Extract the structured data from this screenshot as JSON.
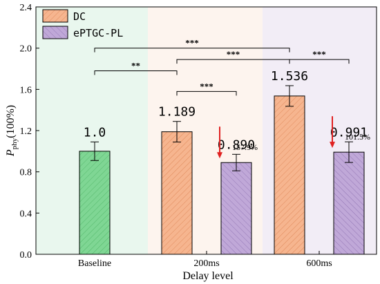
{
  "chart_data": {
    "type": "bar",
    "xlabel": "Delay level",
    "ylabel_main": "P",
    "ylabel_sub": "phy",
    "ylabel_unit": "(100%)",
    "ylim": [
      0,
      2.4
    ],
    "yticks": [
      0.0,
      0.4,
      0.8,
      1.2,
      1.6,
      2.0,
      2.4
    ],
    "ytick_labels": [
      "0.0",
      "0.4",
      "0.8",
      "1.2",
      "1.6",
      "2.0",
      "2.4"
    ],
    "categories": [
      "Baseline",
      "200ms",
      "600ms"
    ],
    "legend": {
      "placement": "top-left",
      "entries": [
        {
          "name": "DC",
          "color": "#f6b58f"
        },
        {
          "name": "ePTGC-PL",
          "color": "#c0a8d8"
        }
      ]
    },
    "bars": [
      {
        "category": "Baseline",
        "series": "baseline",
        "value": 1.0,
        "error": 0.09,
        "label": "1.0",
        "color": "#7fd694"
      },
      {
        "category": "200ms",
        "series": "DC",
        "value": 1.189,
        "error": 0.1,
        "label": "1.189",
        "color": "#f6b58f"
      },
      {
        "category": "200ms",
        "series": "ePTGC-PL",
        "value": 0.89,
        "error": 0.08,
        "label": "0.890",
        "color": "#c0a8d8"
      },
      {
        "category": "600ms",
        "series": "DC",
        "value": 1.536,
        "error": 0.1,
        "label": "1.536",
        "color": "#f6b58f"
      },
      {
        "category": "600ms",
        "series": "ePTGC-PL",
        "value": 0.991,
        "error": 0.1,
        "label": "0.991",
        "color": "#c0a8d8"
      }
    ],
    "improvement_annotations": [
      {
        "text": "157.9%",
        "category": "200ms",
        "color": "#e02020"
      },
      {
        "text": "101.5%",
        "category": "600ms",
        "color": "#e02020"
      }
    ],
    "significance_brackets": [
      {
        "from": "Baseline",
        "to": "600ms",
        "level": 2.0,
        "stars": "***"
      },
      {
        "from": "Baseline",
        "to": "200ms",
        "level": 1.78,
        "stars": "**"
      },
      {
        "from": "200ms",
        "to": "600ms",
        "level": 1.89,
        "stars": "***"
      },
      {
        "from": "200ms-DC",
        "to": "200ms-ePTGC-PL",
        "level": 1.58,
        "stars": "***"
      },
      {
        "from": "600ms",
        "to": "600ms-ePTGC-PL",
        "level": 1.89,
        "stars": "***"
      }
    ],
    "background_bands": [
      {
        "category": "Baseline",
        "color": "#e9f7ee"
      },
      {
        "category": "200ms",
        "color": "#fdf4ee"
      },
      {
        "category": "600ms",
        "color": "#f2edf6"
      }
    ]
  }
}
